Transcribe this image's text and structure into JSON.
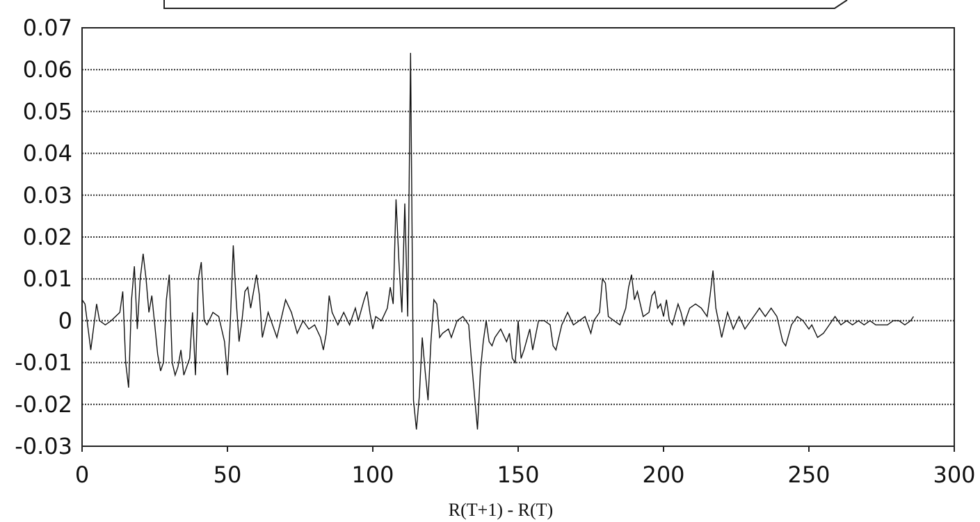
{
  "chart_data": {
    "type": "line",
    "x_label": "R(T+1) - R(T)",
    "xlim": [
      0,
      300
    ],
    "xticks": [
      0,
      50,
      100,
      150,
      200,
      250,
      300
    ],
    "ylim": [
      -0.03,
      0.07
    ],
    "yticks": [
      -0.03,
      -0.02,
      -0.01,
      0,
      0.01,
      0.02,
      0.03,
      0.04,
      0.05,
      0.06,
      0.07
    ],
    "grid": true,
    "color": "#111111",
    "x": [
      0,
      1,
      3,
      5,
      6,
      8,
      10,
      13,
      14,
      15,
      16,
      17,
      18,
      19,
      20,
      21,
      22,
      23,
      24,
      26,
      27,
      28,
      29,
      30,
      31,
      32,
      33,
      34,
      35,
      36,
      37,
      38,
      39,
      40,
      41,
      42,
      43,
      45,
      47,
      49,
      50,
      51,
      52,
      53,
      54,
      55,
      56,
      57,
      58,
      60,
      61,
      62,
      64,
      66,
      67,
      70,
      72,
      74,
      76,
      78,
      80,
      82,
      83,
      84,
      85,
      86,
      88,
      90,
      92,
      94,
      95,
      97,
      98,
      99,
      100,
      101,
      103,
      105,
      106,
      107,
      108,
      109,
      110,
      111,
      112,
      113,
      114,
      115,
      116,
      117,
      118,
      119,
      120,
      121,
      122,
      123,
      124,
      126,
      127,
      129,
      131,
      133,
      134,
      135,
      136,
      137,
      138,
      139,
      140,
      141,
      142,
      144,
      146,
      147,
      148,
      149,
      150,
      151,
      152,
      154,
      155,
      157,
      159,
      161,
      162,
      163,
      165,
      167,
      169,
      171,
      173,
      175,
      176,
      178,
      179,
      180,
      181,
      183,
      185,
      187,
      188,
      189,
      190,
      191,
      193,
      195,
      196,
      197,
      198,
      199,
      200,
      201,
      202,
      203,
      205,
      206,
      207,
      209,
      211,
      213,
      215,
      216,
      217,
      218,
      220,
      222,
      224,
      226,
      228,
      230,
      232,
      233,
      235,
      237,
      239,
      241,
      242,
      244,
      246,
      248,
      250,
      251,
      253,
      255,
      257,
      259,
      261,
      263,
      265,
      267,
      269,
      271,
      273,
      275,
      277,
      279,
      281,
      283,
      285,
      286
    ],
    "values": [
      0.005,
      0.004,
      -0.007,
      0.004,
      0,
      -0.001,
      0,
      0.002,
      0.007,
      -0.01,
      -0.016,
      0.005,
      0.013,
      -0.002,
      0.01,
      0.016,
      0.01,
      0.002,
      0.006,
      -0.008,
      -0.012,
      -0.01,
      0.005,
      0.011,
      -0.01,
      -0.013,
      -0.011,
      -0.007,
      -0.013,
      -0.011,
      -0.009,
      0.002,
      -0.013,
      0.01,
      0.014,
      0,
      -0.001,
      0.002,
      0.001,
      -0.005,
      -0.013,
      0,
      0.018,
      0.005,
      -0.005,
      0,
      0.007,
      0.008,
      0.003,
      0.011,
      0.006,
      -0.004,
      0.002,
      -0.002,
      -0.004,
      0.005,
      0.002,
      -0.003,
      0,
      -0.002,
      -0.001,
      -0.004,
      -0.007,
      -0.003,
      0.006,
      0.002,
      -0.001,
      0.002,
      -0.001,
      0.003,
      0,
      0.005,
      0.007,
      0.002,
      -0.002,
      0.001,
      0,
      0.003,
      0.008,
      0.004,
      0.029,
      0.014,
      0.002,
      0.028,
      0.001,
      0.064,
      -0.019,
      -0.026,
      -0.018,
      -0.004,
      -0.012,
      -0.019,
      -0.005,
      0.005,
      0.004,
      -0.004,
      -0.003,
      -0.002,
      -0.004,
      0,
      0.001,
      -0.001,
      -0.01,
      -0.018,
      -0.026,
      -0.012,
      -0.005,
      0,
      -0.005,
      -0.006,
      -0.004,
      -0.002,
      -0.005,
      -0.003,
      -0.009,
      -0.01,
      0,
      -0.009,
      -0.007,
      -0.002,
      -0.007,
      0,
      0,
      -0.001,
      -0.006,
      -0.007,
      -0.001,
      0.002,
      -0.001,
      0,
      0.001,
      -0.003,
      0,
      0.002,
      0.01,
      0.009,
      0.001,
      0,
      -0.001,
      0.003,
      0.008,
      0.011,
      0.005,
      0.007,
      0.001,
      0.002,
      0.006,
      0.007,
      0.003,
      0.004,
      0.001,
      0.005,
      0,
      -0.001,
      0.004,
      0.002,
      -0.001,
      0.003,
      0.004,
      0.003,
      0.001,
      0.006,
      0.012,
      0.003,
      -0.004,
      0.002,
      -0.002,
      0.001,
      -0.002,
      0,
      0.002,
      0.003,
      0.001,
      0.003,
      0.001,
      -0.005,
      -0.006,
      -0.001,
      0.001,
      0,
      -0.002,
      -0.001,
      -0.004,
      -0.003,
      -0.001,
      0.001,
      -0.001,
      0,
      -0.001,
      0,
      -0.001,
      0,
      -0.001,
      -0.001,
      -0.001,
      0,
      0,
      -0.001,
      0,
      0.001
    ]
  }
}
